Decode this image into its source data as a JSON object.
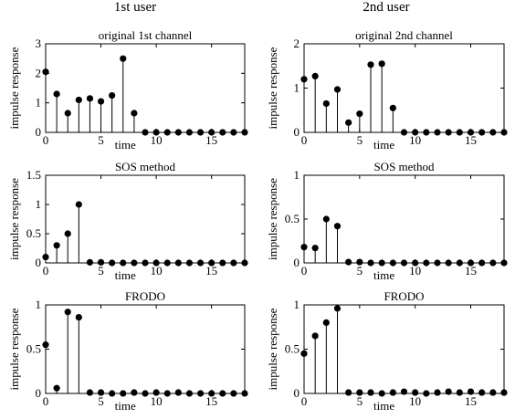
{
  "figure": {
    "column_titles": [
      "1st user",
      "2nd user"
    ]
  },
  "chart_data": [
    {
      "type": "stem",
      "title": "original 1st channel",
      "xlabel": "time",
      "ylabel": "impulse response",
      "xlim": [
        0,
        18
      ],
      "ylim": [
        0,
        3
      ],
      "xticks": [
        0,
        5,
        10,
        15
      ],
      "yticks": [
        0,
        1,
        2,
        3
      ],
      "x": [
        0,
        1,
        2,
        3,
        4,
        5,
        6,
        7,
        8,
        9,
        10,
        11,
        12,
        13,
        14,
        15,
        16,
        17,
        18
      ],
      "values": [
        2.05,
        1.3,
        0.65,
        1.1,
        1.15,
        1.05,
        1.25,
        2.5,
        0.65,
        0,
        0,
        0,
        0,
        0,
        0,
        0,
        0,
        0,
        0
      ]
    },
    {
      "type": "stem",
      "title": "original 2nd channel",
      "xlabel": "time",
      "ylabel": "impulse response",
      "xlim": [
        0,
        18
      ],
      "ylim": [
        0,
        2
      ],
      "xticks": [
        0,
        5,
        10,
        15
      ],
      "yticks": [
        0,
        1,
        2
      ],
      "x": [
        0,
        1,
        2,
        3,
        4,
        5,
        6,
        7,
        8,
        9,
        10,
        11,
        12,
        13,
        14,
        15,
        16,
        17,
        18
      ],
      "values": [
        1.2,
        1.27,
        0.65,
        0.97,
        0.22,
        0.42,
        1.53,
        1.55,
        0.55,
        0,
        0,
        0,
        0,
        0,
        0,
        0,
        0,
        0,
        0
      ]
    },
    {
      "type": "stem",
      "title": "SOS method",
      "xlabel": "time",
      "ylabel": "impulse response",
      "xlim": [
        0,
        18
      ],
      "ylim": [
        0,
        1.5
      ],
      "xticks": [
        0,
        5,
        10,
        15
      ],
      "yticks": [
        0,
        0.5,
        1,
        1.5
      ],
      "x": [
        0,
        1,
        2,
        3,
        4,
        5,
        6,
        7,
        8,
        9,
        10,
        11,
        12,
        13,
        14,
        15,
        16,
        17,
        18
      ],
      "values": [
        0.1,
        0.3,
        0.5,
        1.0,
        0.01,
        0.01,
        0.0,
        0.0,
        0.0,
        0.0,
        0.0,
        0.0,
        0.0,
        0.0,
        0.0,
        0.0,
        0.0,
        0.0,
        0.0
      ]
    },
    {
      "type": "stem",
      "title": "SOS method",
      "xlabel": "time",
      "ylabel": "impulse response",
      "xlim": [
        0,
        18
      ],
      "ylim": [
        0,
        1
      ],
      "xticks": [
        0,
        5,
        10,
        15
      ],
      "yticks": [
        0,
        0.5,
        1
      ],
      "x": [
        0,
        1,
        2,
        3,
        4,
        5,
        6,
        7,
        8,
        9,
        10,
        11,
        12,
        13,
        14,
        15,
        16,
        17,
        18
      ],
      "values": [
        0.18,
        0.17,
        0.5,
        0.42,
        0.01,
        0.01,
        0.0,
        0.0,
        0.0,
        0.0,
        0.0,
        0.0,
        0.0,
        0.0,
        0.0,
        0.0,
        0.0,
        0.0,
        0.0
      ]
    },
    {
      "type": "stem",
      "title": "FRODO",
      "xlabel": "time",
      "ylabel": "impulse response",
      "xlim": [
        0,
        18
      ],
      "ylim": [
        0,
        1
      ],
      "xticks": [
        0,
        5,
        10,
        15
      ],
      "yticks": [
        0,
        0.5,
        1
      ],
      "x": [
        0,
        1,
        2,
        3,
        4,
        5,
        6,
        7,
        8,
        9,
        10,
        11,
        12,
        13,
        14,
        15,
        16,
        17,
        18
      ],
      "values": [
        0.55,
        0.06,
        0.92,
        0.86,
        0.01,
        0.01,
        0.0,
        0.0,
        0.01,
        0.0,
        0.01,
        0.0,
        0.01,
        0.0,
        0.0,
        0.0,
        0.0,
        0.0,
        0.0
      ]
    },
    {
      "type": "stem",
      "title": "FRODO",
      "xlabel": "time",
      "ylabel": "impulse response",
      "xlim": [
        0,
        18
      ],
      "ylim": [
        0,
        1
      ],
      "xticks": [
        0,
        5,
        10,
        15
      ],
      "yticks": [
        0,
        0.5,
        1
      ],
      "x": [
        0,
        1,
        2,
        3,
        4,
        5,
        6,
        7,
        8,
        9,
        10,
        11,
        12,
        13,
        14,
        15,
        16,
        17,
        18
      ],
      "values": [
        0.45,
        0.65,
        0.8,
        0.96,
        0.01,
        0.01,
        0.01,
        0.0,
        0.01,
        0.02,
        0.01,
        0.0,
        0.01,
        0.02,
        0.01,
        0.02,
        0.01,
        0.01,
        0.01
      ]
    }
  ]
}
